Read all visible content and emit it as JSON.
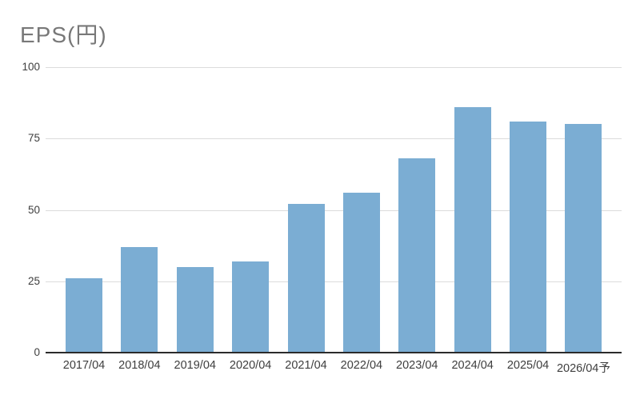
{
  "chart": {
    "title": "EPS(円)"
  },
  "chart_data": {
    "type": "bar",
    "title": "EPS(円)",
    "categories": [
      "2017/04",
      "2018/04",
      "2019/04",
      "2020/04",
      "2021/04",
      "2022/04",
      "2023/04",
      "2024/04",
      "2025/04",
      "2026/04予"
    ],
    "values": [
      26,
      37,
      30,
      32,
      52,
      56,
      68,
      86,
      81,
      80
    ],
    "xlabel": "",
    "ylabel": "",
    "ylim": [
      0,
      100
    ],
    "yticks": [
      0,
      25,
      50,
      75,
      100
    ],
    "grid": true,
    "legend": "none",
    "colors": {
      "bar": "#7badd3",
      "gridline": "#dcdcdc",
      "axis_line": "#2b2b2b",
      "title_text": "#787878",
      "tick_text": "#3e3e3e",
      "background": "#ffffff"
    }
  }
}
